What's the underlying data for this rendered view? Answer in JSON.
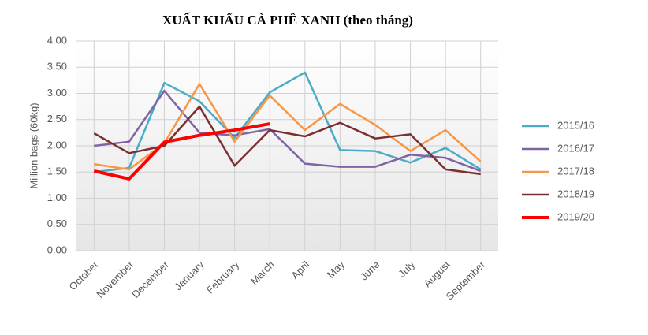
{
  "chart_data": {
    "type": "line",
    "title": "XUẤT KHẨU CÀ PHÊ XANH (theo tháng)",
    "y_label": "Million bags (60kg)",
    "categories": [
      "October",
      "November",
      "December",
      "January",
      "February",
      "March",
      "April",
      "May",
      "June",
      "July",
      "August",
      "September"
    ],
    "series": [
      {
        "name": "2015/16",
        "color": "#4bacc6",
        "values": [
          1.5,
          1.58,
          3.2,
          2.85,
          2.15,
          3.02,
          3.4,
          1.92,
          1.9,
          1.68,
          1.96,
          1.55
        ]
      },
      {
        "name": "2016/17",
        "color": "#8064a2",
        "values": [
          2.0,
          2.08,
          3.05,
          2.25,
          2.2,
          2.32,
          1.66,
          1.6,
          1.6,
          1.83,
          1.77,
          1.52
        ]
      },
      {
        "name": "2017/18",
        "color": "#f79646",
        "values": [
          1.65,
          1.55,
          2.05,
          3.18,
          2.08,
          2.96,
          2.3,
          2.8,
          2.4,
          1.9,
          2.3,
          1.7
        ]
      },
      {
        "name": "2018/19",
        "color": "#7b2f2f",
        "values": [
          2.24,
          1.86,
          2.0,
          2.75,
          1.62,
          2.3,
          2.18,
          2.44,
          2.14,
          2.22,
          1.55,
          1.46
        ]
      },
      {
        "name": "2019/20",
        "color": "#ff0000",
        "width": 4,
        "values": [
          1.52,
          1.37,
          2.07,
          2.2,
          2.3,
          2.42,
          null,
          null,
          null,
          null,
          null,
          null
        ]
      }
    ],
    "ylim": [
      0,
      4
    ],
    "yticks": [
      {
        "value": 0,
        "label": "0.00"
      },
      {
        "value": 0.5,
        "label": "0.50"
      },
      {
        "value": 1,
        "label": "1.00"
      },
      {
        "value": 1.5,
        "label": "1.50"
      },
      {
        "value": 2,
        "label": "2.00"
      },
      {
        "value": 2.5,
        "label": "2.50"
      },
      {
        "value": 3,
        "label": "3.00"
      },
      {
        "value": 3.5,
        "label": "3.50"
      },
      {
        "value": 4,
        "label": "4.00"
      }
    ],
    "grid": true,
    "legend": "right"
  }
}
